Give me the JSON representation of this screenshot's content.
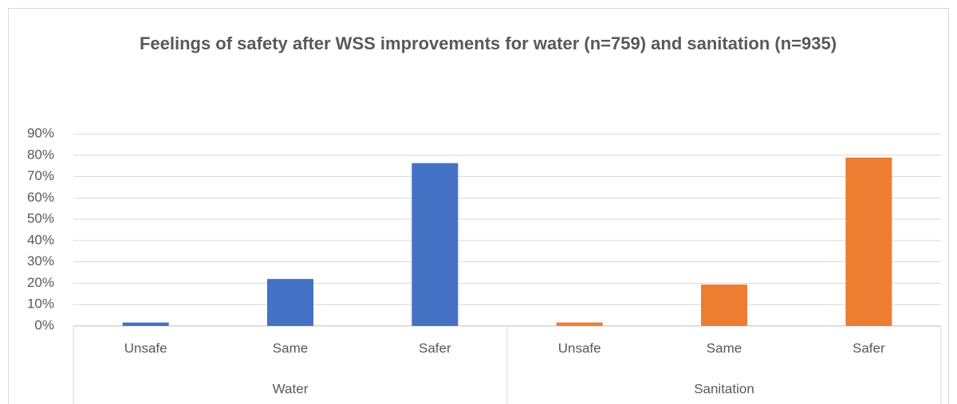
{
  "chart_data": {
    "type": "bar",
    "title": "Feelings of safety after WSS improvements for water (n=759) and sanitation (n=935)",
    "groups": [
      {
        "name": "Water",
        "color": "#4472c4",
        "categories": [
          "Unsafe",
          "Same",
          "Safer"
        ],
        "values": [
          1.6,
          22,
          76.3
        ]
      },
      {
        "name": "Sanitation",
        "color": "#ed7d31",
        "categories": [
          "Unsafe",
          "Same",
          "Safer"
        ],
        "values": [
          1.6,
          19.4,
          78.9
        ]
      }
    ],
    "ylim": [
      0,
      90
    ],
    "yticks": [
      {
        "value": 0,
        "label": "0%"
      },
      {
        "value": 10,
        "label": "10%"
      },
      {
        "value": 20,
        "label": "20%"
      },
      {
        "value": 30,
        "label": "30%"
      },
      {
        "value": 40,
        "label": "40%"
      },
      {
        "value": 50,
        "label": "50%"
      },
      {
        "value": 60,
        "label": "60%"
      },
      {
        "value": 70,
        "label": "70%"
      },
      {
        "value": 80,
        "label": "80%"
      },
      {
        "value": 90,
        "label": "90%"
      }
    ],
    "grid": true
  }
}
